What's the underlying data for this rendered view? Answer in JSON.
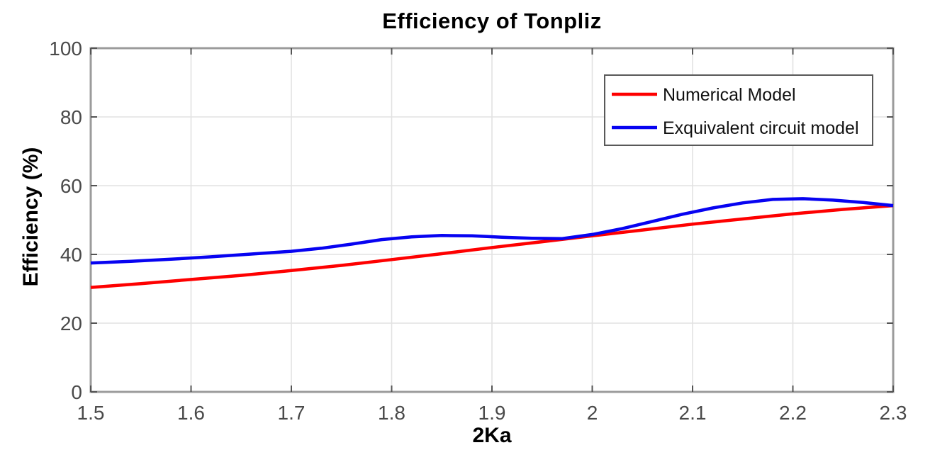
{
  "page": {
    "background": "#ffffff"
  },
  "styles": {
    "grid_color": "#e2e2e2",
    "axis_color": "#9b9b9b",
    "tick_color": "#545454",
    "tick_label_color": "#4a4a4a",
    "title_color": "#000000",
    "legend_border_color": "#595959",
    "legend_text_color": "#111111",
    "series_red": "#fe0000",
    "series_blue": "#0703f1"
  },
  "chart_data": {
    "type": "line",
    "title": "Efficiency of Tonpliz",
    "xlabel": "2Ka",
    "ylabel": "Efficiency (%)",
    "xlim": [
      1.5,
      2.3
    ],
    "ylim": [
      0,
      100
    ],
    "xticks": [
      1.5,
      1.6,
      1.7,
      1.8,
      1.9,
      2.0,
      2.1,
      2.2,
      2.3
    ],
    "xtick_labels": [
      "1.5",
      "1.6",
      "1.7",
      "1.8",
      "1.9",
      "2",
      "2.1",
      "2.2",
      "2.3"
    ],
    "yticks": [
      0,
      20,
      40,
      60,
      80,
      100
    ],
    "ytick_labels": [
      "0",
      "20",
      "40",
      "60",
      "80",
      "100"
    ],
    "grid": true,
    "legend_position": "upper-right",
    "series": [
      {
        "name": "Numerical Model",
        "color": "#fe0000",
        "x": [
          1.5,
          1.55,
          1.6,
          1.65,
          1.7,
          1.75,
          1.8,
          1.85,
          1.9,
          1.95,
          2.0,
          2.05,
          2.1,
          2.15,
          2.2,
          2.25,
          2.3
        ],
        "y": [
          30.4,
          31.5,
          32.7,
          33.9,
          35.3,
          36.8,
          38.5,
          40.2,
          42.0,
          43.7,
          45.4,
          47.1,
          48.8,
          50.3,
          51.8,
          53.1,
          54.2
        ]
      },
      {
        "name": "Exquivalent circuit model",
        "color": "#0703f1",
        "x": [
          1.5,
          1.54,
          1.58,
          1.62,
          1.66,
          1.7,
          1.73,
          1.76,
          1.79,
          1.82,
          1.85,
          1.88,
          1.91,
          1.94,
          1.97,
          2.0,
          2.03,
          2.06,
          2.09,
          2.12,
          2.15,
          2.18,
          2.21,
          2.24,
          2.27,
          2.3
        ],
        "y": [
          37.5,
          38.0,
          38.6,
          39.3,
          40.1,
          40.9,
          41.8,
          43.0,
          44.3,
          45.1,
          45.5,
          45.4,
          45.0,
          44.7,
          44.6,
          45.8,
          47.5,
          49.6,
          51.7,
          53.5,
          55.0,
          56.0,
          56.2,
          55.8,
          55.1,
          54.2
        ]
      }
    ]
  }
}
